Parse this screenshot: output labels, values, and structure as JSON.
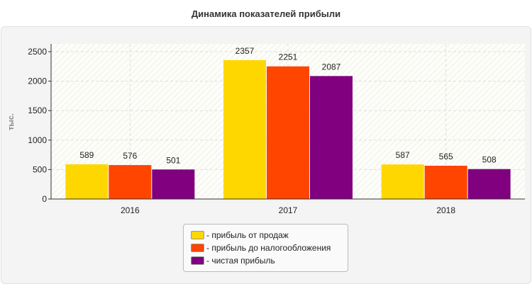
{
  "chart_data": {
    "type": "bar",
    "title": "Динамика показателей прибыли",
    "xlabel": "",
    "ylabel": "тыс.",
    "categories": [
      "2016",
      "2017",
      "2018"
    ],
    "series": [
      {
        "name": "- прибыль от продаж",
        "color": "#ffd700",
        "values": [
          589,
          2357,
          587
        ]
      },
      {
        "name": "- прибыль до налогообложения",
        "color": "#ff4500",
        "values": [
          576,
          2251,
          565
        ]
      },
      {
        "name": "- чистая прибыль",
        "color": "#800080",
        "values": [
          501,
          2087,
          508
        ]
      }
    ],
    "ylim": [
      0,
      2500
    ],
    "yticks": [
      0,
      500,
      1000,
      1500,
      2000,
      2500
    ],
    "grid": true,
    "legend_position": "bottom"
  }
}
